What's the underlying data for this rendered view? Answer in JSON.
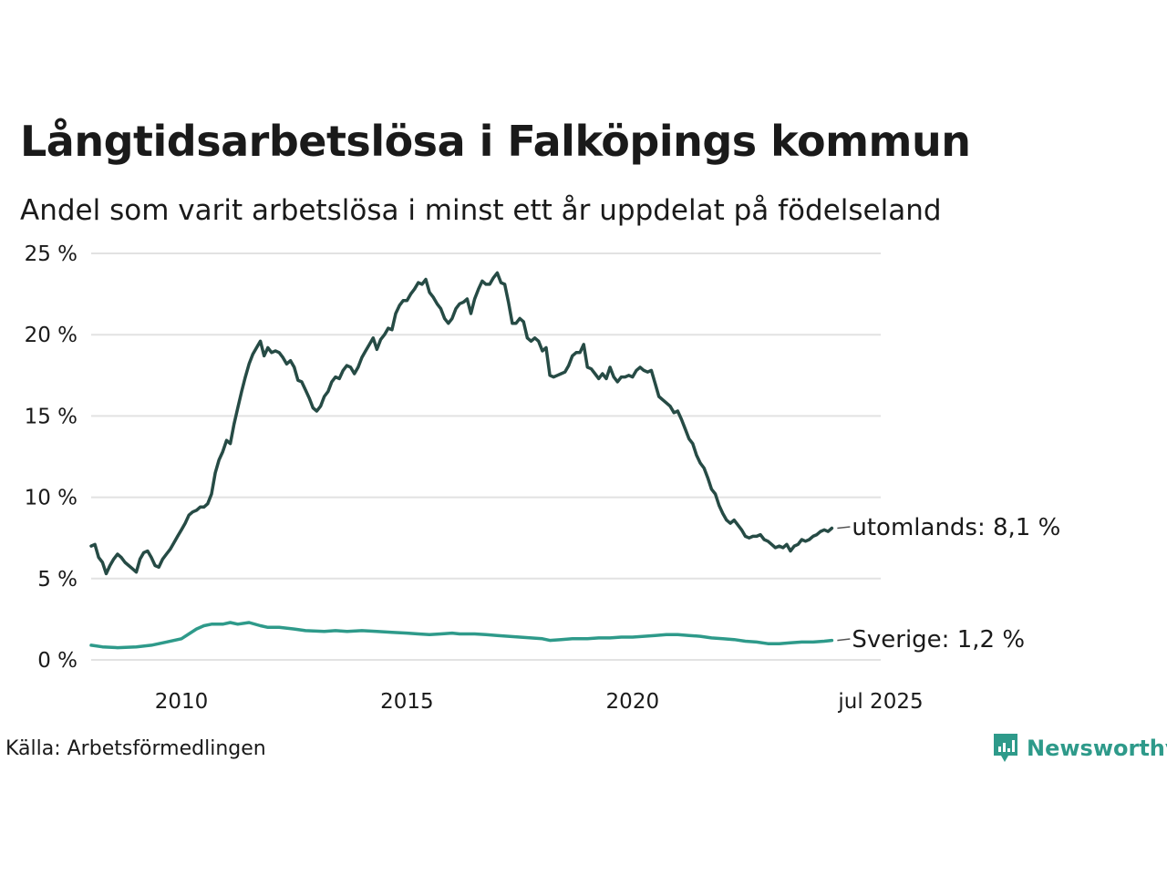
{
  "title": "Långtidsarbetslösa i Falköpings kommun",
  "subtitle": "Andel som varit arbetslösa i minst ett år uppdelat på födelseland",
  "source": "Källa: Arbetsförmedlingen",
  "brand": {
    "name": "Newsworthy",
    "icon": "newsworthy-logo-icon",
    "color": "#2e9a8a"
  },
  "chart_data": {
    "type": "line",
    "title": "Långtidsarbetslösa i Falköpings kommun",
    "subtitle": "Andel som varit arbetslösa i minst ett år uppdelat på födelseland",
    "y_unit": "%",
    "ylim": [
      0,
      25
    ],
    "y_ticks": [
      {
        "value": 0,
        "label": "0 %"
      },
      {
        "value": 5,
        "label": "5 %"
      },
      {
        "value": 10,
        "label": "10 %"
      },
      {
        "value": 15,
        "label": "15 %"
      },
      {
        "value": 20,
        "label": "20 %"
      },
      {
        "value": 25,
        "label": "25 %"
      }
    ],
    "x_range": [
      "2008-01",
      "2025-07"
    ],
    "x_ticks": [
      {
        "value": "2010-01",
        "label": "2010"
      },
      {
        "value": "2015-01",
        "label": "2015"
      },
      {
        "value": "2020-01",
        "label": "2020"
      },
      {
        "value": "2025-07",
        "label": "jul 2025"
      }
    ],
    "grid": "horizontal",
    "series": [
      {
        "name": "utomlands",
        "color": "#264b45",
        "end_label": "utomlands: 8,1 %",
        "points": [
          [
            "2008-01",
            7.0
          ],
          [
            "2008-02",
            7.1
          ],
          [
            "2008-03",
            6.3
          ],
          [
            "2008-04",
            6.0
          ],
          [
            "2008-05",
            5.3
          ],
          [
            "2008-06",
            5.8
          ],
          [
            "2008-07",
            6.2
          ],
          [
            "2008-08",
            6.5
          ],
          [
            "2008-09",
            6.3
          ],
          [
            "2008-10",
            6.0
          ],
          [
            "2008-11",
            5.8
          ],
          [
            "2008-12",
            5.6
          ],
          [
            "2009-01",
            5.4
          ],
          [
            "2009-02",
            6.2
          ],
          [
            "2009-03",
            6.6
          ],
          [
            "2009-04",
            6.7
          ],
          [
            "2009-05",
            6.3
          ],
          [
            "2009-06",
            5.8
          ],
          [
            "2009-07",
            5.7
          ],
          [
            "2009-08",
            6.2
          ],
          [
            "2009-09",
            6.5
          ],
          [
            "2009-10",
            6.8
          ],
          [
            "2009-11",
            7.2
          ],
          [
            "2009-12",
            7.6
          ],
          [
            "2010-01",
            8.0
          ],
          [
            "2010-02",
            8.4
          ],
          [
            "2010-03",
            8.9
          ],
          [
            "2010-04",
            9.1
          ],
          [
            "2010-05",
            9.2
          ],
          [
            "2010-06",
            9.4
          ],
          [
            "2010-07",
            9.4
          ],
          [
            "2010-08",
            9.6
          ],
          [
            "2010-09",
            10.2
          ],
          [
            "2010-10",
            11.5
          ],
          [
            "2010-11",
            12.3
          ],
          [
            "2010-12",
            12.8
          ],
          [
            "2011-01",
            13.5
          ],
          [
            "2011-02",
            13.3
          ],
          [
            "2011-03",
            14.5
          ],
          [
            "2011-04",
            15.5
          ],
          [
            "2011-05",
            16.5
          ],
          [
            "2011-06",
            17.4
          ],
          [
            "2011-07",
            18.2
          ],
          [
            "2011-08",
            18.8
          ],
          [
            "2011-09",
            19.2
          ],
          [
            "2011-10",
            19.6
          ],
          [
            "2011-11",
            18.7
          ],
          [
            "2011-12",
            19.2
          ],
          [
            "2012-01",
            18.9
          ],
          [
            "2012-02",
            19.0
          ],
          [
            "2012-03",
            18.9
          ],
          [
            "2012-04",
            18.6
          ],
          [
            "2012-05",
            18.2
          ],
          [
            "2012-06",
            18.4
          ],
          [
            "2012-07",
            18.0
          ],
          [
            "2012-08",
            17.2
          ],
          [
            "2012-09",
            17.1
          ],
          [
            "2012-10",
            16.6
          ],
          [
            "2012-11",
            16.1
          ],
          [
            "2012-12",
            15.5
          ],
          [
            "2013-01",
            15.3
          ],
          [
            "2013-02",
            15.6
          ],
          [
            "2013-03",
            16.2
          ],
          [
            "2013-04",
            16.5
          ],
          [
            "2013-05",
            17.1
          ],
          [
            "2013-06",
            17.4
          ],
          [
            "2013-07",
            17.3
          ],
          [
            "2013-08",
            17.8
          ],
          [
            "2013-09",
            18.1
          ],
          [
            "2013-10",
            18.0
          ],
          [
            "2013-11",
            17.6
          ],
          [
            "2013-12",
            18.0
          ],
          [
            "2014-01",
            18.6
          ],
          [
            "2014-02",
            19.0
          ],
          [
            "2014-03",
            19.4
          ],
          [
            "2014-04",
            19.8
          ],
          [
            "2014-05",
            19.1
          ],
          [
            "2014-06",
            19.7
          ],
          [
            "2014-07",
            20.0
          ],
          [
            "2014-08",
            20.4
          ],
          [
            "2014-09",
            20.3
          ],
          [
            "2014-10",
            21.3
          ],
          [
            "2014-11",
            21.8
          ],
          [
            "2014-12",
            22.1
          ],
          [
            "2015-01",
            22.1
          ],
          [
            "2015-02",
            22.5
          ],
          [
            "2015-03",
            22.8
          ],
          [
            "2015-04",
            23.2
          ],
          [
            "2015-05",
            23.1
          ],
          [
            "2015-06",
            23.4
          ],
          [
            "2015-07",
            22.6
          ],
          [
            "2015-08",
            22.3
          ],
          [
            "2015-09",
            21.9
          ],
          [
            "2015-10",
            21.6
          ],
          [
            "2015-11",
            21.0
          ],
          [
            "2015-12",
            20.7
          ],
          [
            "2016-01",
            21.0
          ],
          [
            "2016-02",
            21.6
          ],
          [
            "2016-03",
            21.9
          ],
          [
            "2016-04",
            22.0
          ],
          [
            "2016-05",
            22.2
          ],
          [
            "2016-06",
            21.3
          ],
          [
            "2016-07",
            22.2
          ],
          [
            "2016-08",
            22.8
          ],
          [
            "2016-09",
            23.3
          ],
          [
            "2016-10",
            23.1
          ],
          [
            "2016-11",
            23.1
          ],
          [
            "2016-12",
            23.5
          ],
          [
            "2017-01",
            23.8
          ],
          [
            "2017-02",
            23.2
          ],
          [
            "2017-03",
            23.1
          ],
          [
            "2017-04",
            22.0
          ],
          [
            "2017-05",
            20.7
          ],
          [
            "2017-06",
            20.7
          ],
          [
            "2017-07",
            21.0
          ],
          [
            "2017-08",
            20.8
          ],
          [
            "2017-09",
            19.8
          ],
          [
            "2017-10",
            19.6
          ],
          [
            "2017-11",
            19.8
          ],
          [
            "2017-12",
            19.6
          ],
          [
            "2018-01",
            19.0
          ],
          [
            "2018-02",
            19.2
          ],
          [
            "2018-03",
            17.5
          ],
          [
            "2018-04",
            17.4
          ],
          [
            "2018-05",
            17.5
          ],
          [
            "2018-06",
            17.6
          ],
          [
            "2018-07",
            17.7
          ],
          [
            "2018-08",
            18.1
          ],
          [
            "2018-09",
            18.7
          ],
          [
            "2018-10",
            18.9
          ],
          [
            "2018-11",
            18.9
          ],
          [
            "2018-12",
            19.4
          ],
          [
            "2019-01",
            18.0
          ],
          [
            "2019-02",
            17.9
          ],
          [
            "2019-03",
            17.6
          ],
          [
            "2019-04",
            17.3
          ],
          [
            "2019-05",
            17.6
          ],
          [
            "2019-06",
            17.3
          ],
          [
            "2019-07",
            18.0
          ],
          [
            "2019-08",
            17.4
          ],
          [
            "2019-09",
            17.1
          ],
          [
            "2019-10",
            17.4
          ],
          [
            "2019-11",
            17.4
          ],
          [
            "2019-12",
            17.5
          ],
          [
            "2020-01",
            17.4
          ],
          [
            "2020-02",
            17.8
          ],
          [
            "2020-03",
            18.0
          ],
          [
            "2020-04",
            17.8
          ],
          [
            "2020-05",
            17.7
          ],
          [
            "2020-06",
            17.8
          ],
          [
            "2020-07",
            17.0
          ],
          [
            "2020-08",
            16.2
          ],
          [
            "2020-09",
            16.0
          ],
          [
            "2020-10",
            15.8
          ],
          [
            "2020-11",
            15.6
          ],
          [
            "2020-12",
            15.2
          ],
          [
            "2021-01",
            15.3
          ],
          [
            "2021-02",
            14.8
          ],
          [
            "2021-03",
            14.2
          ],
          [
            "2021-04",
            13.6
          ],
          [
            "2021-05",
            13.3
          ],
          [
            "2021-06",
            12.6
          ],
          [
            "2021-07",
            12.1
          ],
          [
            "2021-08",
            11.8
          ],
          [
            "2021-09",
            11.2
          ],
          [
            "2021-10",
            10.5
          ],
          [
            "2021-11",
            10.2
          ],
          [
            "2021-12",
            9.5
          ],
          [
            "2022-01",
            9.0
          ],
          [
            "2022-02",
            8.6
          ],
          [
            "2022-03",
            8.4
          ],
          [
            "2022-04",
            8.6
          ],
          [
            "2022-05",
            8.3
          ],
          [
            "2022-06",
            8.0
          ],
          [
            "2022-07",
            7.6
          ],
          [
            "2022-08",
            7.5
          ],
          [
            "2022-09",
            7.6
          ],
          [
            "2022-10",
            7.6
          ],
          [
            "2022-11",
            7.7
          ],
          [
            "2022-12",
            7.4
          ],
          [
            "2023-01",
            7.3
          ],
          [
            "2023-02",
            7.1
          ],
          [
            "2023-03",
            6.9
          ],
          [
            "2023-04",
            7.0
          ],
          [
            "2023-05",
            6.9
          ],
          [
            "2023-06",
            7.1
          ],
          [
            "2023-07",
            6.7
          ],
          [
            "2023-08",
            7.0
          ],
          [
            "2023-09",
            7.1
          ],
          [
            "2023-10",
            7.4
          ],
          [
            "2023-11",
            7.3
          ],
          [
            "2023-12",
            7.4
          ],
          [
            "2024-01",
            7.6
          ],
          [
            "2024-02",
            7.7
          ],
          [
            "2024-03",
            7.9
          ],
          [
            "2024-04",
            8.0
          ],
          [
            "2024-05",
            7.9
          ],
          [
            "2024-06",
            8.1
          ]
        ]
      },
      {
        "name": "Sverige",
        "color": "#2e9a8a",
        "end_label": "Sverige: 1,2 %",
        "points": [
          [
            "2008-01",
            0.9
          ],
          [
            "2008-04",
            0.8
          ],
          [
            "2008-08",
            0.75
          ],
          [
            "2009-01",
            0.8
          ],
          [
            "2009-05",
            0.9
          ],
          [
            "2009-09",
            1.1
          ],
          [
            "2010-01",
            1.3
          ],
          [
            "2010-03",
            1.6
          ],
          [
            "2010-05",
            1.9
          ],
          [
            "2010-07",
            2.1
          ],
          [
            "2010-09",
            2.2
          ],
          [
            "2010-12",
            2.2
          ],
          [
            "2011-02",
            2.3
          ],
          [
            "2011-04",
            2.2
          ],
          [
            "2011-07",
            2.3
          ],
          [
            "2011-10",
            2.1
          ],
          [
            "2011-12",
            2.0
          ],
          [
            "2012-03",
            2.0
          ],
          [
            "2012-07",
            1.9
          ],
          [
            "2012-10",
            1.8
          ],
          [
            "2013-03",
            1.75
          ],
          [
            "2013-06",
            1.8
          ],
          [
            "2013-09",
            1.75
          ],
          [
            "2014-01",
            1.8
          ],
          [
            "2014-05",
            1.75
          ],
          [
            "2014-09",
            1.7
          ],
          [
            "2015-01",
            1.65
          ],
          [
            "2015-04",
            1.6
          ],
          [
            "2015-07",
            1.55
          ],
          [
            "2015-10",
            1.6
          ],
          [
            "2016-01",
            1.65
          ],
          [
            "2016-03",
            1.6
          ],
          [
            "2016-07",
            1.6
          ],
          [
            "2016-10",
            1.55
          ],
          [
            "2017-01",
            1.5
          ],
          [
            "2017-04",
            1.45
          ],
          [
            "2017-07",
            1.4
          ],
          [
            "2017-10",
            1.35
          ],
          [
            "2018-01",
            1.3
          ],
          [
            "2018-03",
            1.2
          ],
          [
            "2018-06",
            1.25
          ],
          [
            "2018-09",
            1.3
          ],
          [
            "2019-01",
            1.3
          ],
          [
            "2019-04",
            1.35
          ],
          [
            "2019-07",
            1.35
          ],
          [
            "2019-10",
            1.4
          ],
          [
            "2020-01",
            1.4
          ],
          [
            "2020-04",
            1.45
          ],
          [
            "2020-07",
            1.5
          ],
          [
            "2020-10",
            1.55
          ],
          [
            "2021-01",
            1.55
          ],
          [
            "2021-04",
            1.5
          ],
          [
            "2021-07",
            1.45
          ],
          [
            "2021-10",
            1.35
          ],
          [
            "2022-01",
            1.3
          ],
          [
            "2022-04",
            1.25
          ],
          [
            "2022-07",
            1.15
          ],
          [
            "2022-10",
            1.1
          ],
          [
            "2023-01",
            1.0
          ],
          [
            "2023-04",
            1.0
          ],
          [
            "2023-07",
            1.05
          ],
          [
            "2023-10",
            1.1
          ],
          [
            "2024-01",
            1.1
          ],
          [
            "2024-04",
            1.15
          ],
          [
            "2024-06",
            1.2
          ]
        ]
      }
    ]
  }
}
